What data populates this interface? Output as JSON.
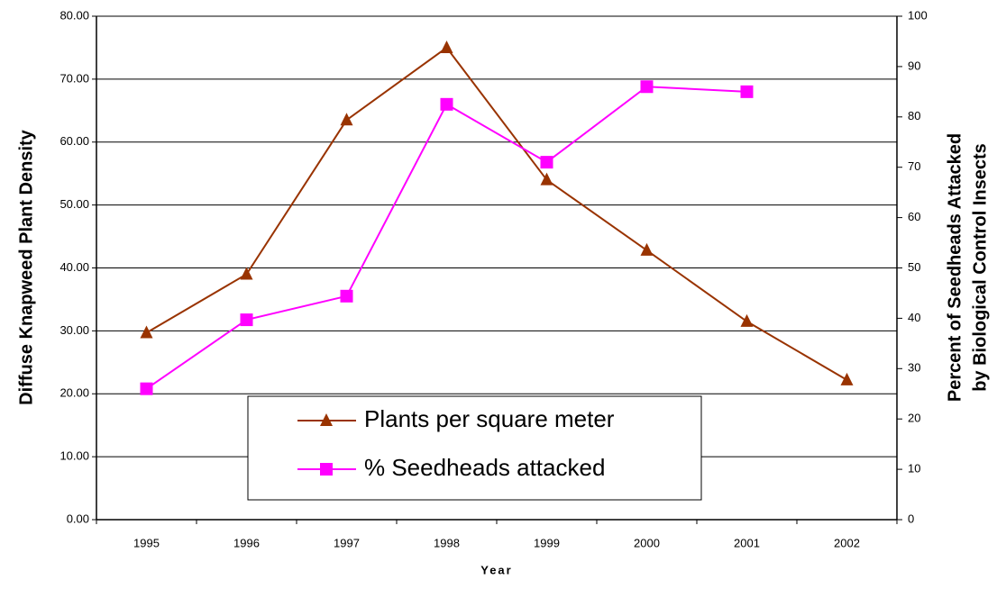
{
  "chart_data": {
    "type": "line",
    "xlabel": "Year",
    "ylabel": "Diffuse Knapweed Plant Density",
    "y2label": [
      "Percent of Seedheads Attacked",
      "by Biological Control Insects"
    ],
    "categories": [
      "1995",
      "1996",
      "1997",
      "1998",
      "1999",
      "2000",
      "2001",
      "2002"
    ],
    "series": [
      {
        "name": "Plants per square meter",
        "color": "#993300",
        "marker": "triangle",
        "values": [
          29.7,
          39.0,
          63.5,
          75.0,
          54.0,
          42.8,
          31.5,
          22.2
        ]
      },
      {
        "name": "% Seedheads attacked",
        "color": "#ff00ff",
        "marker": "square",
        "axis": "y2",
        "values": [
          26.0,
          39.7,
          44.4,
          82.5,
          71.0,
          86.0,
          85.0,
          null
        ]
      }
    ],
    "ylim": [
      0,
      80
    ],
    "yticks": [
      {
        "value": 0,
        "label": "0.00"
      },
      {
        "value": 10,
        "label": "10.00"
      },
      {
        "value": 20,
        "label": "20.00"
      },
      {
        "value": 30,
        "label": "30.00"
      },
      {
        "value": 40,
        "label": "40.00"
      },
      {
        "value": 50,
        "label": "50.00"
      },
      {
        "value": 60,
        "label": "60.00"
      },
      {
        "value": 70,
        "label": "70.00"
      },
      {
        "value": 80,
        "label": "80.00"
      }
    ],
    "y2lim": [
      0,
      100
    ],
    "y2ticks": [
      0,
      10,
      20,
      30,
      40,
      50,
      60,
      70,
      80,
      90,
      100
    ],
    "grid": true
  }
}
